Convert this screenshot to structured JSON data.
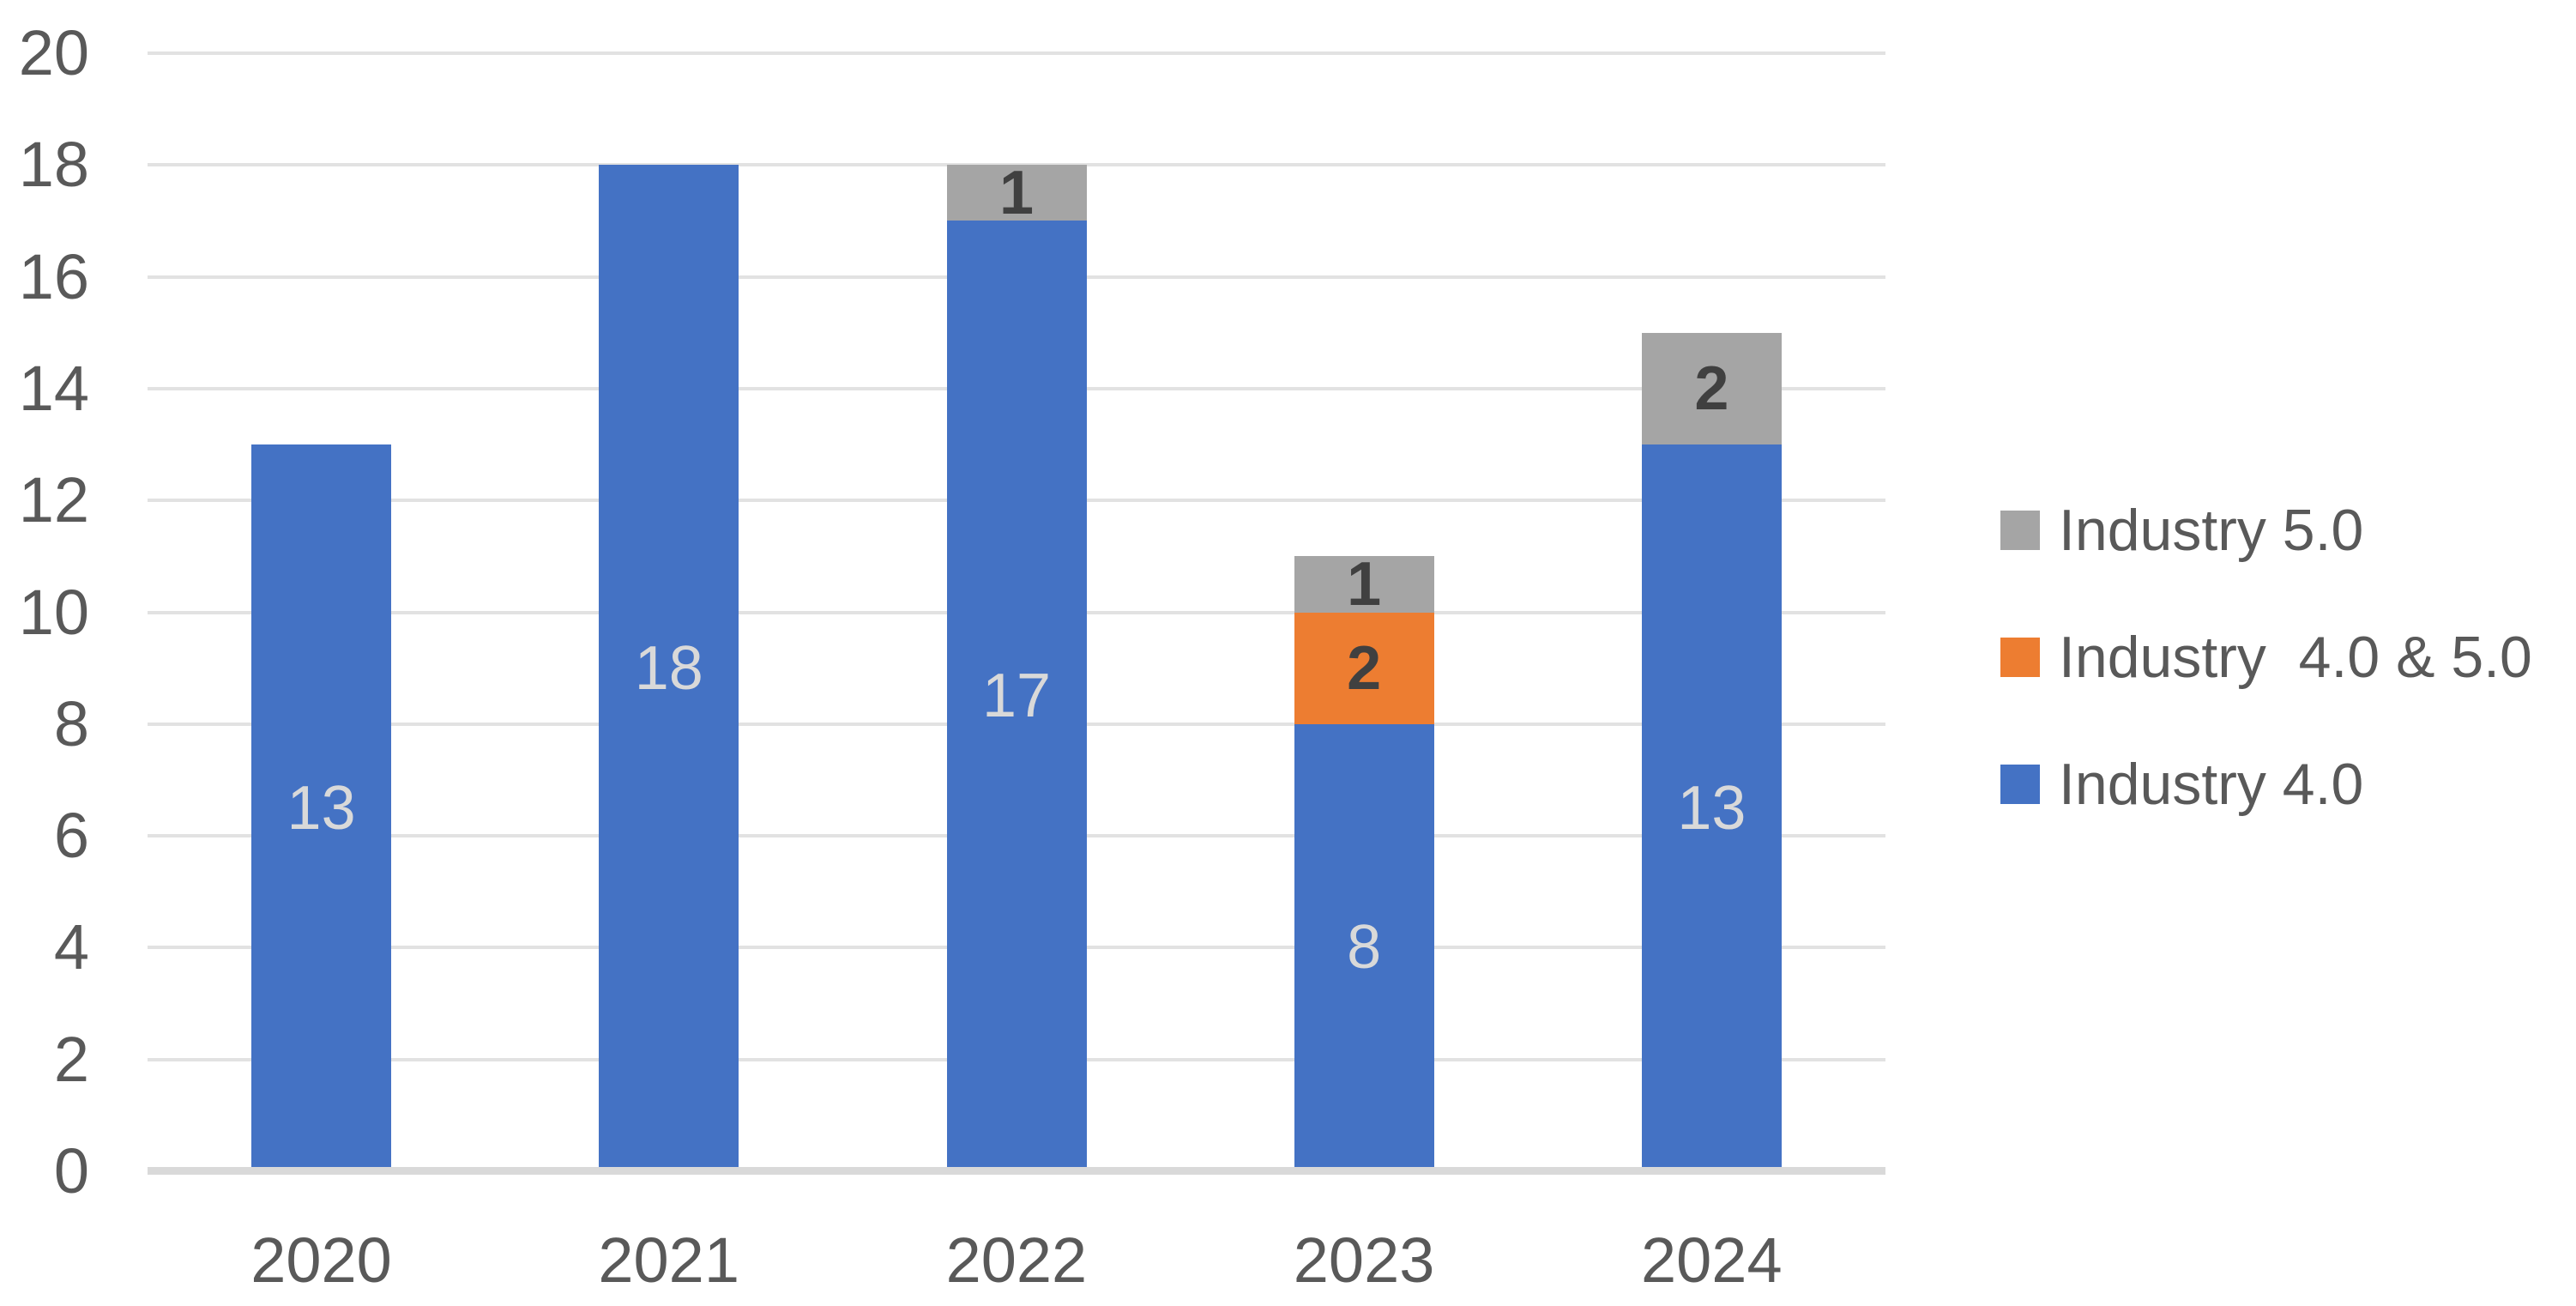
{
  "chart_data": {
    "type": "bar",
    "stacked": true,
    "title": "",
    "categories": [
      "2020",
      "2021",
      "2022",
      "2023",
      "2024"
    ],
    "series": [
      {
        "name": "Industry 4.0",
        "color": "#4472C4",
        "values": [
          13,
          18,
          17,
          8,
          13
        ],
        "label_color": "#D9D9D9",
        "label_bold": false
      },
      {
        "name": "Industry  4.0 & 5.0",
        "color": "#ED7D31",
        "values": [
          0,
          0,
          0,
          2,
          0
        ],
        "label_color": "#404040",
        "label_bold": true
      },
      {
        "name": "Industry 5.0",
        "color": "#A5A5A5",
        "values": [
          0,
          0,
          1,
          1,
          2
        ],
        "label_color": "#404040",
        "label_bold": true
      }
    ],
    "totals": [
      13,
      18,
      18,
      11,
      15
    ],
    "y_axis": {
      "min": 0,
      "max": 20,
      "step": 2,
      "tick_labels": [
        "0",
        "2",
        "4",
        "6",
        "8",
        "10",
        "12",
        "14",
        "16",
        "18",
        "20"
      ]
    },
    "x_axis_labels": [
      "2020",
      "2021",
      "2022",
      "2023",
      "2024"
    ],
    "grid": true,
    "legend": {
      "position": "right",
      "items": [
        {
          "label": "Industry 5.0",
          "series": "Industry 5.0"
        },
        {
          "label": "Industry  4.0 & 5.0",
          "series": "Industry  4.0 & 5.0"
        },
        {
          "label": "Industry 4.0",
          "series": "Industry 4.0"
        }
      ]
    },
    "colors": {
      "axis_text": "#595959",
      "gridline": "#E2E2E2",
      "baseline": "#D9D9D9",
      "background": "#FFFFFF"
    }
  }
}
